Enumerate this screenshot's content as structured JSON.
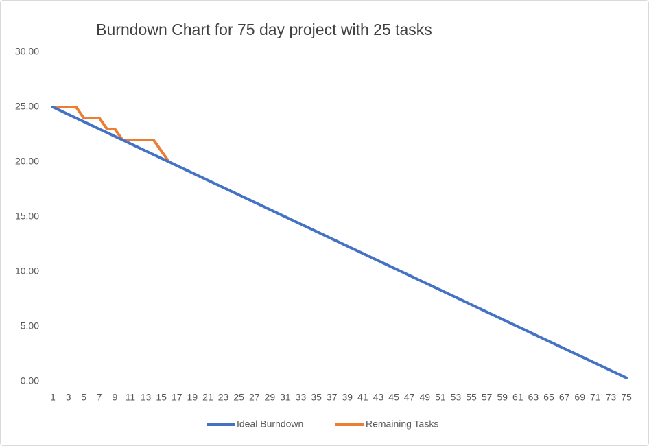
{
  "chart_data": {
    "type": "line",
    "title": "Burndown Chart for 75 day project with 25 tasks",
    "categories": [
      1,
      null,
      3,
      null,
      5,
      null,
      7,
      null,
      9,
      null,
      11,
      null,
      13,
      null,
      15,
      null,
      17,
      null,
      19,
      null,
      21,
      null,
      23,
      null,
      25,
      null,
      27,
      null,
      29,
      null,
      31,
      null,
      33,
      null,
      35,
      null,
      37,
      null,
      39,
      null,
      41,
      null,
      43,
      null,
      45,
      null,
      47,
      null,
      49,
      null,
      51,
      null,
      53,
      null,
      55,
      null,
      57,
      null,
      59,
      null,
      61,
      null,
      63,
      null,
      65,
      null,
      67,
      null,
      69,
      null,
      71,
      null,
      73,
      null,
      75
    ],
    "series": [
      {
        "name": "Ideal Burndown",
        "color": "#4472c4",
        "values": [
          25,
          24.67,
          24.33,
          24,
          23.67,
          23.33,
          23,
          22.67,
          22.33,
          22,
          21.67,
          21.33,
          21,
          20.67,
          20.33,
          20,
          19.67,
          19.33,
          19,
          18.67,
          18.33,
          18,
          17.67,
          17.33,
          17,
          16.67,
          16.33,
          16,
          15.67,
          15.33,
          15,
          14.67,
          14.33,
          14,
          13.67,
          13.33,
          13,
          12.67,
          12.33,
          12,
          11.67,
          11.33,
          11,
          10.67,
          10.33,
          10,
          9.67,
          9.33,
          9,
          8.67,
          8.33,
          8,
          7.67,
          7.33,
          7,
          6.67,
          6.33,
          6,
          5.67,
          5.33,
          5,
          4.67,
          4.33,
          4,
          3.67,
          3.33,
          3,
          2.67,
          2.33,
          2,
          1.67,
          1.33,
          1,
          0.67,
          0.33
        ]
      },
      {
        "name": "Remaining Tasks",
        "color": "#ed7d31",
        "values": [
          25,
          25,
          25,
          25,
          24,
          24,
          24,
          23,
          23,
          22,
          22,
          22,
          22,
          22,
          21,
          20,
          null,
          null,
          null,
          null,
          null,
          null,
          null,
          null,
          null,
          null,
          null,
          null,
          null,
          null,
          null,
          null,
          null,
          null,
          null,
          null,
          null,
          null,
          null,
          null,
          null,
          null,
          null,
          null,
          null,
          null,
          null,
          null,
          null,
          null,
          null,
          null,
          null,
          null,
          null,
          null,
          null,
          null,
          null,
          null,
          null,
          null,
          null,
          null,
          null,
          null,
          null,
          null,
          null,
          null,
          null,
          null,
          null,
          null,
          null
        ]
      }
    ],
    "ylim": [
      0,
      30
    ],
    "yticks": [
      {
        "value": 0,
        "label": "0.00"
      },
      {
        "value": 5,
        "label": "5.00"
      },
      {
        "value": 10,
        "label": "10.00"
      },
      {
        "value": 15,
        "label": "15.00"
      },
      {
        "value": 20,
        "label": "20.00"
      },
      {
        "value": 25,
        "label": "25.00"
      },
      {
        "value": 30,
        "label": "30.00"
      }
    ],
    "grid": false
  }
}
